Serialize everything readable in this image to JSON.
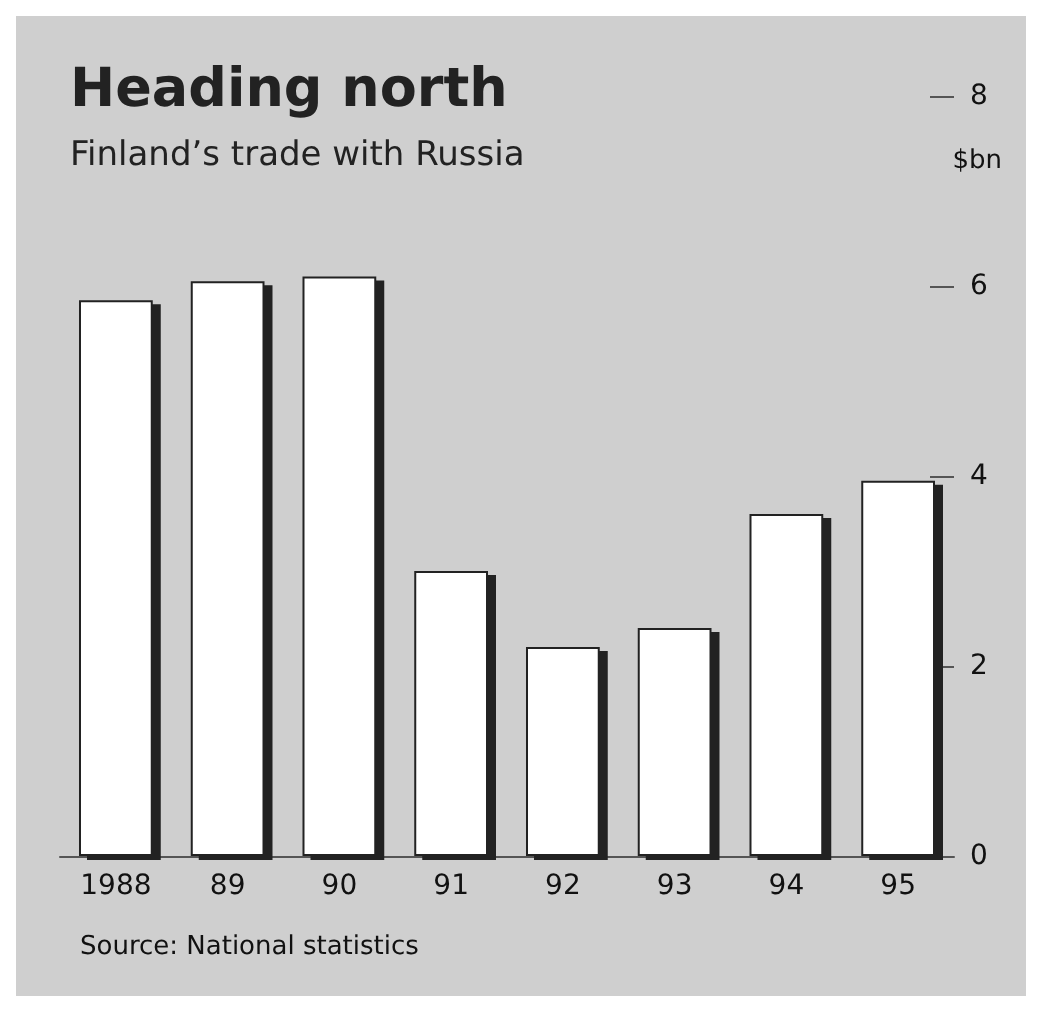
{
  "chart_data": {
    "type": "bar",
    "title": "Heading north",
    "subtitle": "Finland’s trade with Russia",
    "ylabel": "$bn",
    "categories": [
      "1988",
      "89",
      "90",
      "91",
      "92",
      "93",
      "94",
      "95"
    ],
    "values": [
      5.85,
      6.05,
      6.1,
      3.0,
      2.2,
      2.4,
      3.6,
      3.95
    ],
    "color": "#ffffff",
    "ylim": [
      0,
      8
    ],
    "yticks": [
      0,
      2,
      4,
      6,
      8
    ],
    "grid": false,
    "annotations": [
      "Source: National statistics"
    ]
  }
}
